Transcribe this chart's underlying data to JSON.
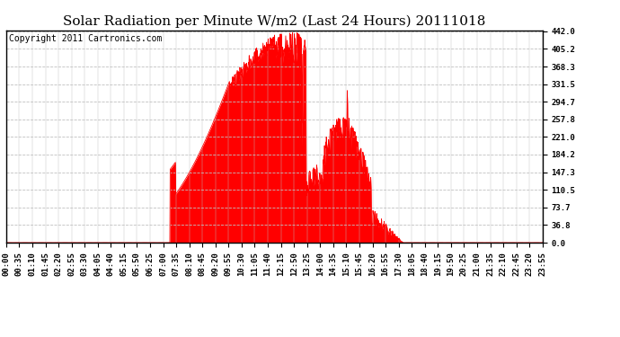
{
  "title": "Solar Radiation per Minute W/m2 (Last 24 Hours) 20111018",
  "copyright": "Copyright 2011 Cartronics.com",
  "y_ticks": [
    0.0,
    36.8,
    73.7,
    110.5,
    147.3,
    184.2,
    221.0,
    257.8,
    294.7,
    331.5,
    368.3,
    405.2,
    442.0
  ],
  "ymax": 442.0,
  "ymin": 0.0,
  "fill_color": "#FF0000",
  "line_color": "#FF0000",
  "bg_color": "#FFFFFF",
  "plot_bg_color": "#FFFFFF",
  "grid_color": "#C0C0C0",
  "dashed_line_color": "#FF0000",
  "title_fontsize": 11,
  "copyright_fontsize": 7,
  "tick_fontsize": 6.5,
  "x_labels": [
    "00:00",
    "00:35",
    "01:10",
    "01:45",
    "02:20",
    "02:55",
    "03:30",
    "04:05",
    "04:40",
    "05:15",
    "05:50",
    "06:25",
    "07:00",
    "07:35",
    "08:10",
    "08:45",
    "09:20",
    "09:55",
    "10:30",
    "11:05",
    "11:40",
    "12:15",
    "12:50",
    "13:25",
    "14:00",
    "14:35",
    "15:10",
    "15:45",
    "16:20",
    "16:55",
    "17:30",
    "18:05",
    "18:40",
    "19:15",
    "19:50",
    "20:25",
    "21:00",
    "21:35",
    "22:10",
    "22:45",
    "23:20",
    "23:55"
  ]
}
